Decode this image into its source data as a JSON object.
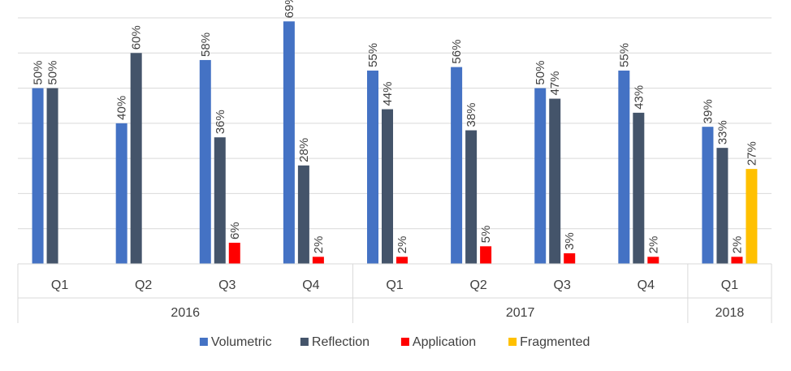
{
  "chart_data": {
    "type": "bar",
    "title": "",
    "xlabel": "",
    "ylabel": "",
    "ylim": [
      0,
      70
    ],
    "grid": true,
    "legend_position": "bottom",
    "categories": [
      "Q1",
      "Q2",
      "Q3",
      "Q4",
      "Q1",
      "Q2",
      "Q3",
      "Q4",
      "Q1"
    ],
    "groups": [
      {
        "label": "2016",
        "count": 4
      },
      {
        "label": "2017",
        "count": 4
      },
      {
        "label": "2018",
        "count": 1
      }
    ],
    "series": [
      {
        "name": "Volumetric",
        "color": "#4472C4",
        "values": [
          50,
          40,
          58,
          69,
          55,
          56,
          50,
          55,
          39
        ]
      },
      {
        "name": "Reflection",
        "color": "#44546A",
        "values": [
          50,
          60,
          36,
          28,
          44,
          38,
          47,
          43,
          33
        ]
      },
      {
        "name": "Application",
        "color": "#FF0000",
        "values": [
          null,
          null,
          6,
          2,
          2,
          5,
          3,
          2,
          2
        ]
      },
      {
        "name": "Fragmented",
        "color": "#FFC000",
        "values": [
          null,
          null,
          null,
          null,
          null,
          null,
          null,
          null,
          27
        ]
      }
    ],
    "value_suffix": "%"
  }
}
